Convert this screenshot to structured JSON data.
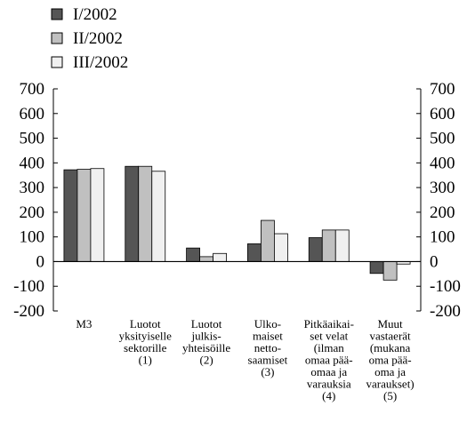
{
  "chart_data": {
    "type": "bar",
    "title": "",
    "xlabel": "",
    "ylabel": "",
    "ylim": [
      -200,
      700
    ],
    "yticks": [
      -200,
      -100,
      0,
      100,
      200,
      300,
      400,
      500,
      600,
      700
    ],
    "grid": false,
    "legend_position": "top-left",
    "categories": [
      [
        "M3"
      ],
      [
        "Luotot",
        "yksityiselle",
        "sektorille",
        "(1)"
      ],
      [
        "Luotot",
        "julkis-",
        "yhteisöille",
        "(2)"
      ],
      [
        "Ulko-",
        "maiset",
        "netto-",
        "saamiset",
        "(3)"
      ],
      [
        "Pitkäaikai-",
        "set velat",
        "(ilman",
        "omaa pää-",
        "omaa ja",
        "varauksia",
        "(4)"
      ],
      [
        "Muut",
        "vastaerät",
        "(mukana",
        "oma pää-",
        "oma ja",
        "varaukset)",
        "(5)"
      ]
    ],
    "series": [
      {
        "name": "I/2002",
        "color": "#555555",
        "values": [
          372,
          386,
          55,
          72,
          97,
          -48
        ]
      },
      {
        "name": "II/2002",
        "color": "#c0c0c0",
        "values": [
          374,
          386,
          20,
          167,
          128,
          -75
        ]
      },
      {
        "name": "III/2002",
        "color": "#f0f0f0",
        "values": [
          377,
          366,
          33,
          113,
          128,
          -10
        ]
      }
    ]
  }
}
